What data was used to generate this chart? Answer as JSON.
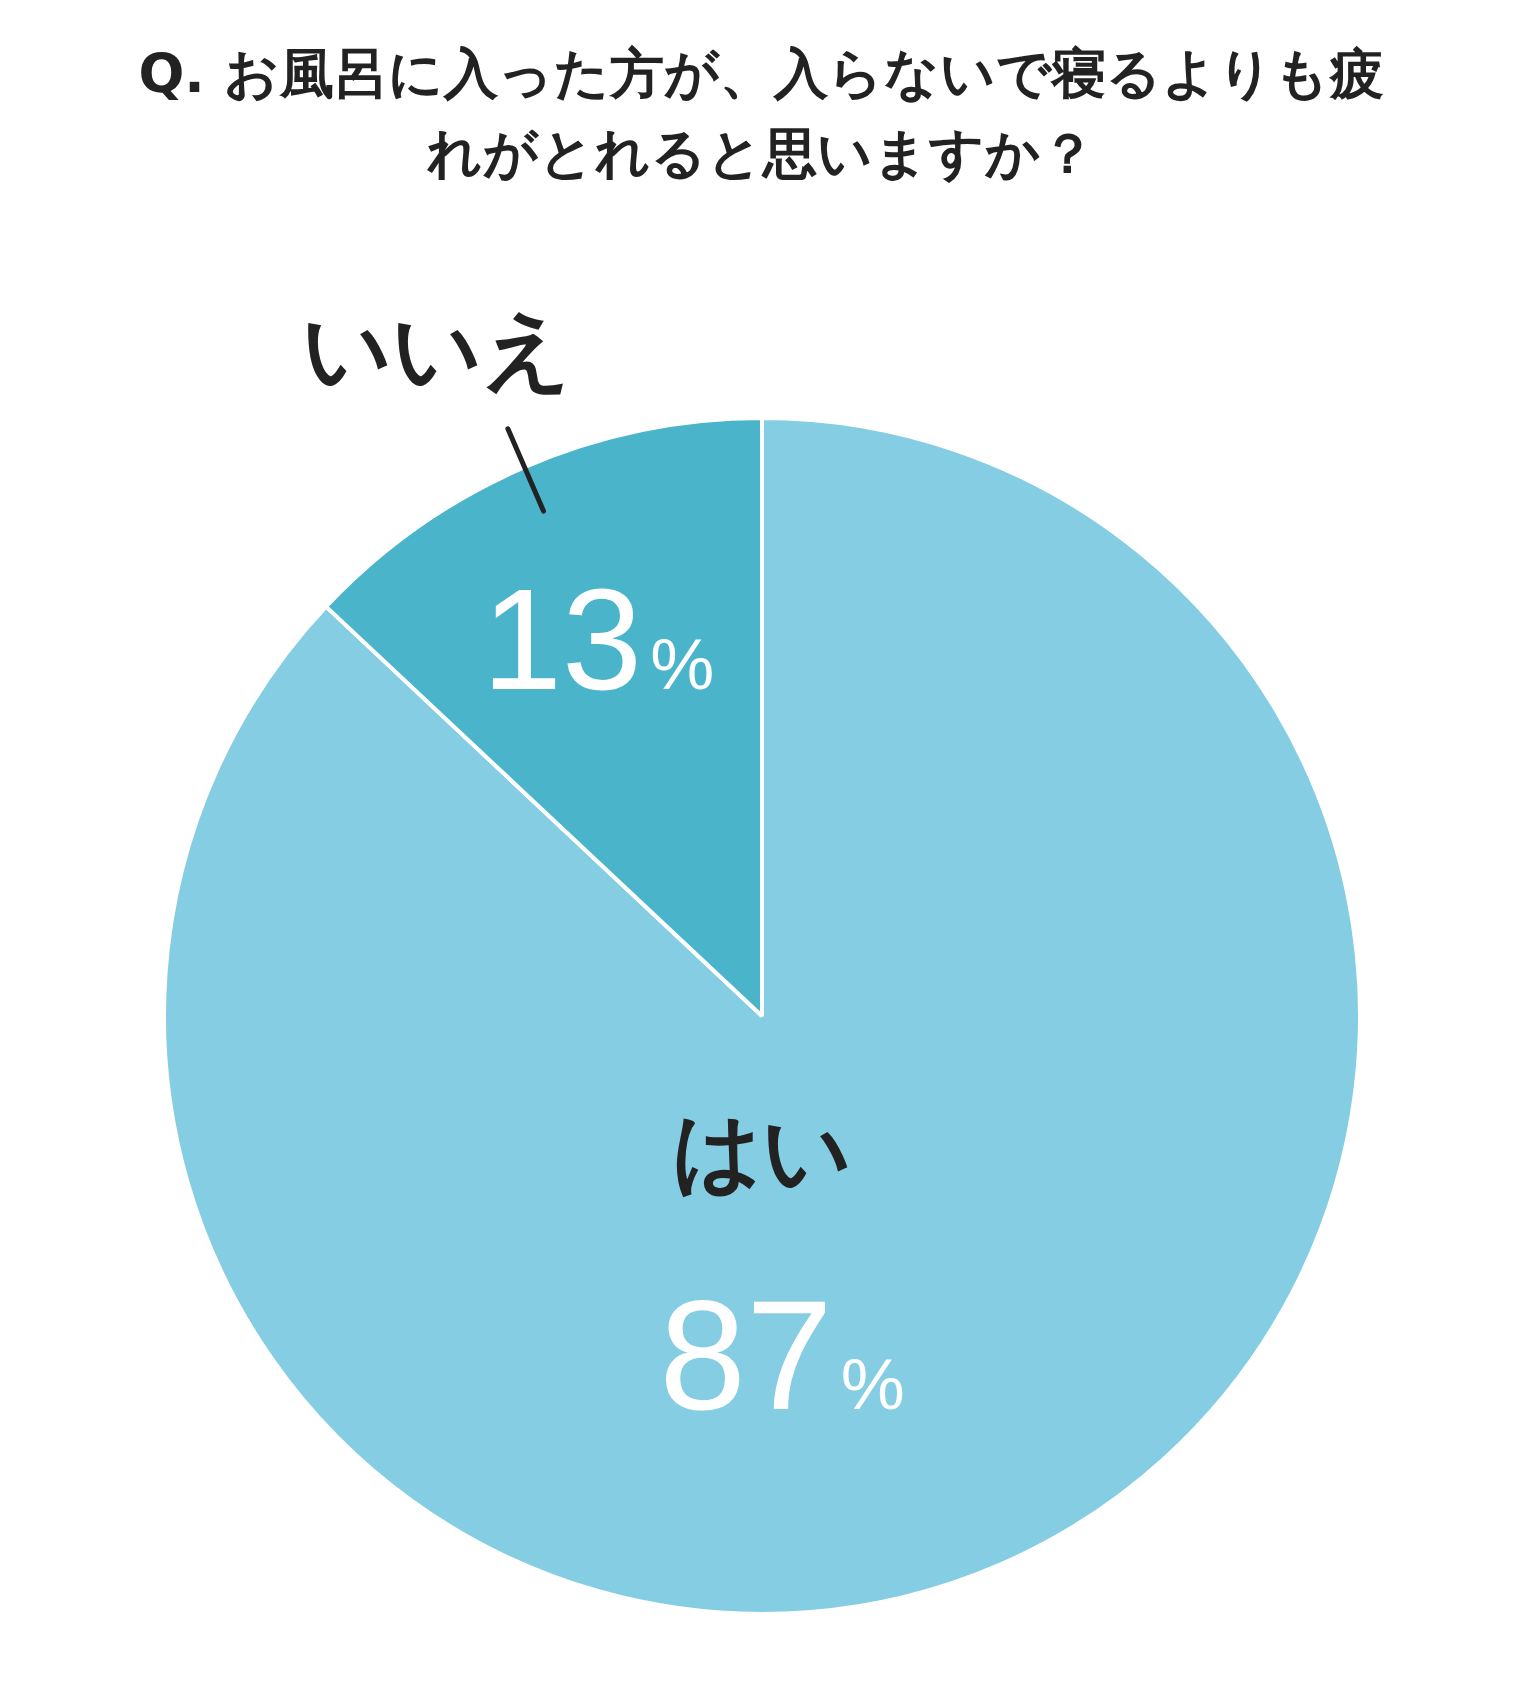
{
  "chart_data": {
    "type": "pie",
    "title": "Q. お風呂に入った方が、入らないで寝るよりも疲れがとれると思いますか？",
    "categories": [
      "はい",
      "いいえ"
    ],
    "values": [
      87,
      13
    ],
    "colors": [
      "#84cde2",
      "#4ab5ca"
    ],
    "value_labels": [
      "87%",
      "13%"
    ],
    "legend": false
  }
}
